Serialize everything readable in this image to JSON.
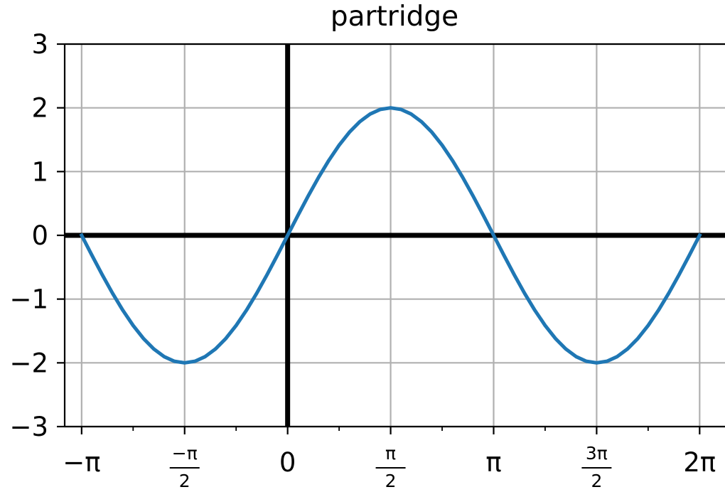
{
  "chart_data": {
    "type": "line",
    "title": "partridge",
    "xlabel": "",
    "ylabel": "",
    "xlim": [
      -3.4,
      6.67
    ],
    "ylim": [
      -3,
      3
    ],
    "grid": true,
    "x_ticks": [
      {
        "value": -3.14159,
        "label": "−π",
        "style": "plain"
      },
      {
        "value": -1.5708,
        "num": "−π",
        "den": "2",
        "style": "fraction"
      },
      {
        "value": 0,
        "label": "0",
        "style": "plain"
      },
      {
        "value": 1.5708,
        "num": "π",
        "den": "2",
        "style": "fraction"
      },
      {
        "value": 3.14159,
        "label": "π",
        "style": "plain"
      },
      {
        "value": 4.71239,
        "num": "3π",
        "den": "2",
        "style": "fraction"
      },
      {
        "value": 6.28319,
        "label": "2π",
        "style": "plain"
      }
    ],
    "y_ticks": [
      {
        "value": 3,
        "label": "3"
      },
      {
        "value": 2,
        "label": "2"
      },
      {
        "value": 1,
        "label": "1"
      },
      {
        "value": 0,
        "label": "0"
      },
      {
        "value": -1,
        "label": "−1"
      },
      {
        "value": -2,
        "label": "−2"
      },
      {
        "value": -3,
        "label": "−3"
      }
    ],
    "reference_lines": {
      "x": 0,
      "y": 0
    },
    "series": [
      {
        "color": "#1f77b4",
        "x": [
          -3.14159,
          -2.9845,
          -2.82743,
          -2.67035,
          -2.51327,
          -2.35619,
          -2.19911,
          -2.04204,
          -1.88496,
          -1.72788,
          -1.5708,
          -1.41372,
          -1.25664,
          -1.09956,
          -0.94248,
          -0.7854,
          -0.62832,
          -0.47124,
          -0.31416,
          -0.15708,
          0,
          0.15708,
          0.31416,
          0.47124,
          0.62832,
          0.7854,
          0.94248,
          1.09956,
          1.25664,
          1.41372,
          1.5708,
          1.72788,
          1.88496,
          2.04204,
          2.19911,
          2.35619,
          2.51327,
          2.67035,
          2.82743,
          2.9845,
          3.14159,
          3.29867,
          3.45575,
          3.61283,
          3.76991,
          3.92699,
          4.08407,
          4.24115,
          4.39823,
          4.5553,
          4.71239,
          4.86947,
          5.02655,
          5.18363,
          5.34071,
          5.49779,
          5.65487,
          5.81195,
          5.96903,
          6.12611,
          6.28319
        ],
        "y": [
          0,
          -0.3129,
          -0.618,
          -0.908,
          -1.1756,
          -1.4142,
          -1.618,
          -1.782,
          -1.902,
          -1.9754,
          -2,
          -1.9754,
          -1.902,
          -1.782,
          -1.618,
          -1.4142,
          -1.1756,
          -0.908,
          -0.618,
          -0.3129,
          0,
          0.3129,
          0.618,
          0.908,
          1.1756,
          1.4142,
          1.618,
          1.782,
          1.902,
          1.9754,
          2,
          1.9754,
          1.902,
          1.782,
          1.618,
          1.4142,
          1.1756,
          0.908,
          0.618,
          0.3129,
          0,
          -0.3129,
          -0.618,
          -0.908,
          -1.1756,
          -1.4142,
          -1.618,
          -1.782,
          -1.902,
          -1.9754,
          -2,
          -1.9754,
          -1.902,
          -1.782,
          -1.618,
          -1.4142,
          -1.1756,
          -0.908,
          -0.618,
          -0.3129,
          0
        ]
      }
    ]
  }
}
